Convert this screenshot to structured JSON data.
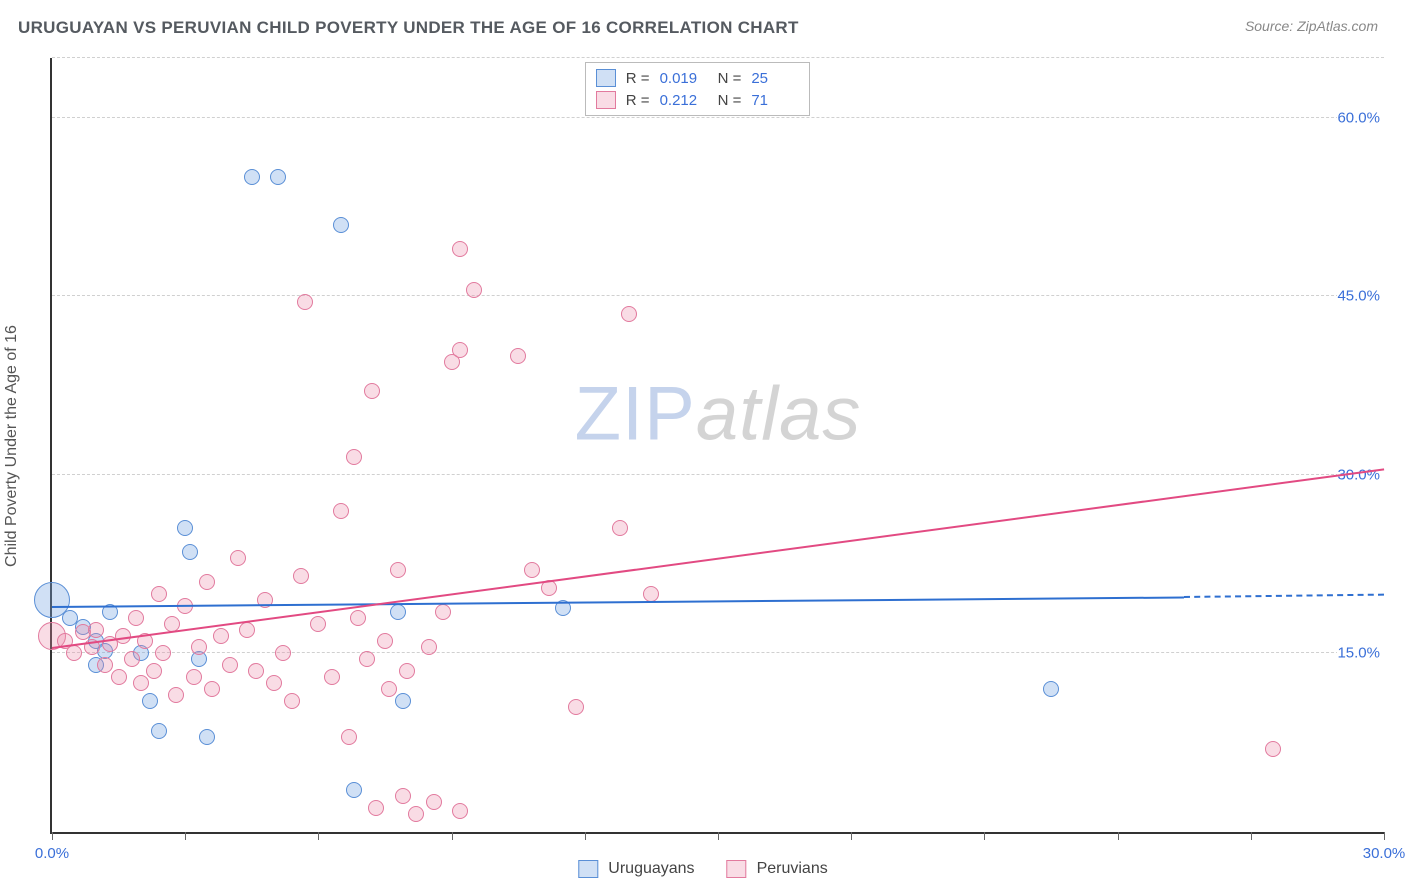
{
  "header": {
    "title": "URUGUAYAN VS PERUVIAN CHILD POVERTY UNDER THE AGE OF 16 CORRELATION CHART",
    "source": "Source: ZipAtlas.com"
  },
  "watermark": {
    "part1": "ZIP",
    "part2": "atlas"
  },
  "chart": {
    "type": "scatter",
    "y_axis_title": "Child Poverty Under the Age of 16",
    "xlim": [
      0,
      30
    ],
    "ylim": [
      0,
      65
    ],
    "xticks": [
      0,
      3,
      6,
      9,
      12,
      15,
      18,
      21,
      24,
      27,
      30
    ],
    "xtick_labels": {
      "0": "0.0%",
      "30": "30.0%"
    },
    "y_gridlines": [
      15,
      30,
      45,
      60,
      65
    ],
    "ytick_labels": {
      "15": "15.0%",
      "30": "30.0%",
      "45": "45.0%",
      "60": "60.0%"
    },
    "background_color": "#ffffff",
    "grid_color": "#d0d0d0",
    "axis_color": "#333333",
    "tick_label_color": "#3a6fd8",
    "series": [
      {
        "name": "Uruguayans",
        "fill": "rgba(120,165,225,0.35)",
        "stroke": "#5a8fd6",
        "trend_color": "#2e6fd0",
        "r_value": "0.019",
        "n_value": "25",
        "trend": {
          "x0": 0,
          "y0": 19.0,
          "x1_solid": 25.5,
          "y1_solid": 19.8,
          "x1_dash": 30,
          "y1_dash": 20.0
        },
        "points": [
          {
            "x": 0.0,
            "y": 19.5,
            "r": 18
          },
          {
            "x": 0.4,
            "y": 18.0,
            "r": 8
          },
          {
            "x": 0.7,
            "y": 17.2,
            "r": 8
          },
          {
            "x": 1.0,
            "y": 16.0,
            "r": 8
          },
          {
            "x": 1.2,
            "y": 15.2,
            "r": 8
          },
          {
            "x": 1.0,
            "y": 14.0,
            "r": 8
          },
          {
            "x": 1.3,
            "y": 18.5,
            "r": 8
          },
          {
            "x": 2.0,
            "y": 15.0,
            "r": 8
          },
          {
            "x": 2.2,
            "y": 11.0,
            "r": 8
          },
          {
            "x": 2.4,
            "y": 8.5,
            "r": 8
          },
          {
            "x": 3.0,
            "y": 25.5,
            "r": 8
          },
          {
            "x": 3.1,
            "y": 23.5,
            "r": 8
          },
          {
            "x": 3.3,
            "y": 14.5,
            "r": 8
          },
          {
            "x": 3.5,
            "y": 8.0,
            "r": 8
          },
          {
            "x": 4.5,
            "y": 55.0,
            "r": 8
          },
          {
            "x": 5.1,
            "y": 55.0,
            "r": 8
          },
          {
            "x": 6.5,
            "y": 51.0,
            "r": 8
          },
          {
            "x": 6.8,
            "y": 3.5,
            "r": 8
          },
          {
            "x": 7.8,
            "y": 18.5,
            "r": 8
          },
          {
            "x": 7.9,
            "y": 11.0,
            "r": 8
          },
          {
            "x": 11.5,
            "y": 18.8,
            "r": 8
          },
          {
            "x": 22.5,
            "y": 12.0,
            "r": 8
          }
        ]
      },
      {
        "name": "Peruvians",
        "fill": "rgba(235,140,170,0.30)",
        "stroke": "#e27a9e",
        "trend_color": "#e24a82",
        "r_value": "0.212",
        "n_value": "71",
        "trend": {
          "x0": 0,
          "y0": 15.5,
          "x1_solid": 30,
          "y1_solid": 30.5,
          "x1_dash": 30,
          "y1_dash": 30.5
        },
        "points": [
          {
            "x": 0.0,
            "y": 16.5,
            "r": 14
          },
          {
            "x": 0.3,
            "y": 16.0,
            "r": 8
          },
          {
            "x": 0.5,
            "y": 15.0,
            "r": 8
          },
          {
            "x": 0.7,
            "y": 16.8,
            "r": 8
          },
          {
            "x": 0.9,
            "y": 15.5,
            "r": 8
          },
          {
            "x": 1.0,
            "y": 17.0,
            "r": 8
          },
          {
            "x": 1.2,
            "y": 14.0,
            "r": 8
          },
          {
            "x": 1.3,
            "y": 15.8,
            "r": 8
          },
          {
            "x": 1.5,
            "y": 13.0,
            "r": 8
          },
          {
            "x": 1.6,
            "y": 16.5,
            "r": 8
          },
          {
            "x": 1.8,
            "y": 14.5,
            "r": 8
          },
          {
            "x": 1.9,
            "y": 18.0,
            "r": 8
          },
          {
            "x": 2.0,
            "y": 12.5,
            "r": 8
          },
          {
            "x": 2.1,
            "y": 16.0,
            "r": 8
          },
          {
            "x": 2.3,
            "y": 13.5,
            "r": 8
          },
          {
            "x": 2.4,
            "y": 20.0,
            "r": 8
          },
          {
            "x": 2.5,
            "y": 15.0,
            "r": 8
          },
          {
            "x": 2.7,
            "y": 17.5,
            "r": 8
          },
          {
            "x": 2.8,
            "y": 11.5,
            "r": 8
          },
          {
            "x": 3.0,
            "y": 19.0,
            "r": 8
          },
          {
            "x": 3.2,
            "y": 13.0,
            "r": 8
          },
          {
            "x": 3.3,
            "y": 15.5,
            "r": 8
          },
          {
            "x": 3.5,
            "y": 21.0,
            "r": 8
          },
          {
            "x": 3.6,
            "y": 12.0,
            "r": 8
          },
          {
            "x": 3.8,
            "y": 16.5,
            "r": 8
          },
          {
            "x": 4.0,
            "y": 14.0,
            "r": 8
          },
          {
            "x": 4.2,
            "y": 23.0,
            "r": 8
          },
          {
            "x": 4.4,
            "y": 17.0,
            "r": 8
          },
          {
            "x": 4.6,
            "y": 13.5,
            "r": 8
          },
          {
            "x": 4.8,
            "y": 19.5,
            "r": 8
          },
          {
            "x": 5.0,
            "y": 12.5,
            "r": 8
          },
          {
            "x": 5.2,
            "y": 15.0,
            "r": 8
          },
          {
            "x": 5.4,
            "y": 11.0,
            "r": 8
          },
          {
            "x": 5.6,
            "y": 21.5,
            "r": 8
          },
          {
            "x": 5.7,
            "y": 44.5,
            "r": 8
          },
          {
            "x": 6.0,
            "y": 17.5,
            "r": 8
          },
          {
            "x": 6.3,
            "y": 13.0,
            "r": 8
          },
          {
            "x": 6.5,
            "y": 27.0,
            "r": 8
          },
          {
            "x": 6.7,
            "y": 8.0,
            "r": 8
          },
          {
            "x": 6.8,
            "y": 31.5,
            "r": 8
          },
          {
            "x": 6.9,
            "y": 18.0,
            "r": 8
          },
          {
            "x": 7.1,
            "y": 14.5,
            "r": 8
          },
          {
            "x": 7.2,
            "y": 37.0,
            "r": 8
          },
          {
            "x": 7.3,
            "y": 2.0,
            "r": 8
          },
          {
            "x": 7.5,
            "y": 16.0,
            "r": 8
          },
          {
            "x": 7.6,
            "y": 12.0,
            "r": 8
          },
          {
            "x": 7.8,
            "y": 22.0,
            "r": 8
          },
          {
            "x": 7.9,
            "y": 3.0,
            "r": 8
          },
          {
            "x": 8.0,
            "y": 13.5,
            "r": 8
          },
          {
            "x": 8.2,
            "y": 1.5,
            "r": 8
          },
          {
            "x": 8.5,
            "y": 15.5,
            "r": 8
          },
          {
            "x": 8.6,
            "y": 2.5,
            "r": 8
          },
          {
            "x": 8.8,
            "y": 18.5,
            "r": 8
          },
          {
            "x": 9.0,
            "y": 39.5,
            "r": 8
          },
          {
            "x": 9.2,
            "y": 40.5,
            "r": 8
          },
          {
            "x": 9.2,
            "y": 49.0,
            "r": 8
          },
          {
            "x": 9.5,
            "y": 45.5,
            "r": 8
          },
          {
            "x": 9.2,
            "y": 1.8,
            "r": 8
          },
          {
            "x": 10.5,
            "y": 40.0,
            "r": 8
          },
          {
            "x": 10.8,
            "y": 22.0,
            "r": 8
          },
          {
            "x": 11.2,
            "y": 20.5,
            "r": 8
          },
          {
            "x": 11.8,
            "y": 10.5,
            "r": 8
          },
          {
            "x": 12.8,
            "y": 25.5,
            "r": 8
          },
          {
            "x": 13.0,
            "y": 43.5,
            "r": 8
          },
          {
            "x": 13.5,
            "y": 20.0,
            "r": 8
          },
          {
            "x": 27.5,
            "y": 7.0,
            "r": 8
          }
        ]
      }
    ]
  },
  "legend_top": {
    "r_label": "R =",
    "n_label": "N ="
  },
  "legend_bottom": {
    "items": [
      "Uruguayans",
      "Peruvians"
    ]
  }
}
